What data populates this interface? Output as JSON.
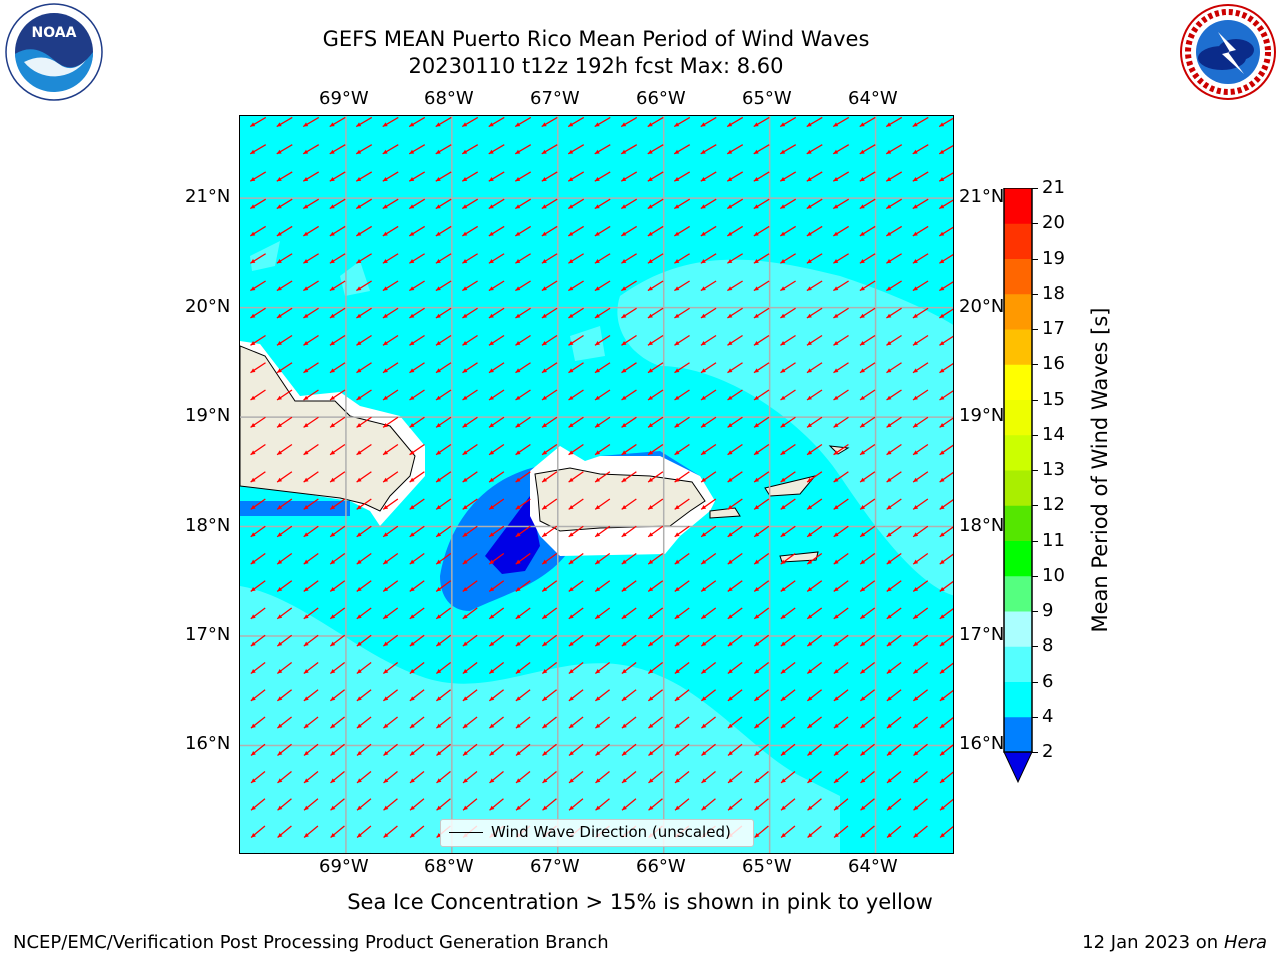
{
  "title_line1": "GEFS MEAN Puerto Rico Mean Period of Wind Waves",
  "title_line2": "20230110 t12z 192h fcst   Max: 8.60",
  "logos": {
    "left": {
      "icon": "noaa-logo-icon",
      "text": "NOAA",
      "ring_text": "NATIONAL OCEANIC AND ATMOSPHERIC ADMINISTRATION · U.S. DEPARTMENT OF COMMERCE"
    },
    "right": {
      "icon": "nws-logo-icon",
      "ring_text": "NATIONAL WEATHER SERVICE"
    }
  },
  "map": {
    "lon_ticks": [
      "69°W",
      "68°W",
      "67°W",
      "66°W",
      "65°W",
      "64°W"
    ],
    "lat_ticks": [
      "21°N",
      "20°N",
      "19°N",
      "18°N",
      "17°N",
      "16°N"
    ],
    "lon_range": [
      -70.0,
      -63.25
    ],
    "lat_range": [
      15.0,
      21.75
    ],
    "gridlines": true,
    "arrow_color": "#ff0000",
    "land_color": "#efedde",
    "legend_label": "Wind Wave Direction (unscaled)",
    "legend_position": "lower-center"
  },
  "colorbar": {
    "label": "Mean Period of Wind Waves [s]",
    "ticks": [
      "2",
      "4",
      "6",
      "8",
      "9",
      "10",
      "11",
      "12",
      "13",
      "14",
      "15",
      "16",
      "17",
      "18",
      "19",
      "20",
      "21"
    ],
    "levels": [
      2,
      4,
      6,
      8,
      9,
      10,
      11,
      12,
      13,
      14,
      15,
      16,
      17,
      18,
      19,
      20,
      21
    ],
    "colors": [
      "#0000ff",
      "#0080ff",
      "#00ffff",
      "#55ffff",
      "#aaffff",
      "#55ff80",
      "#00ff00",
      "#55e600",
      "#aaee00",
      "#ccff00",
      "#eeff00",
      "#ffff00",
      "#ffc000",
      "#ff9900",
      "#ff6600",
      "#ff3300",
      "#ff0000"
    ],
    "under_color": "#0000e6"
  },
  "footer_note": "Sea Ice Concentration > 15% is shown in pink to yellow",
  "footer_left": "NCEP/EMC/Verification Post Processing Product Generation Branch",
  "footer_right_prefix": "12 Jan 2023 on ",
  "footer_right_host": "Hera"
}
